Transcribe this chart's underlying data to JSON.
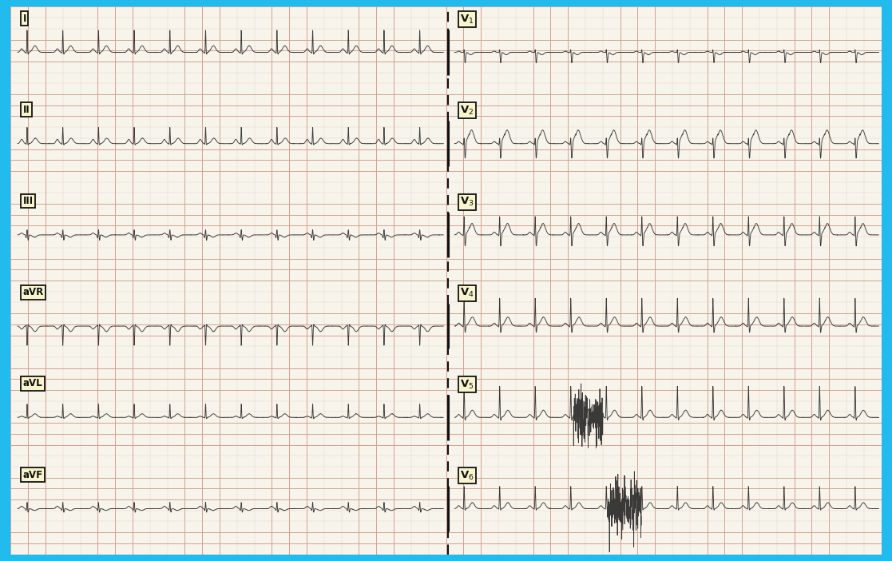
{
  "background_color": "#f7f4ec",
  "grid_minor_color": "#e8c8b8",
  "grid_major_color": "#d4a090",
  "border_color": "#22bbee",
  "label_bg": "#f8f5cc",
  "label_border": "#111111",
  "ecg_color": "#2a2a2a",
  "dashed_color": "#111111",
  "leads_left": [
    "I",
    "II",
    "III",
    "aVR",
    "aVL",
    "aVF"
  ],
  "leads_right": [
    "V1",
    "V2",
    "V3",
    "V4",
    "V5",
    "V6"
  ],
  "fig_width": 11.17,
  "fig_height": 7.02,
  "dpi": 100,
  "heart_rate": 68,
  "n_rows": 6
}
